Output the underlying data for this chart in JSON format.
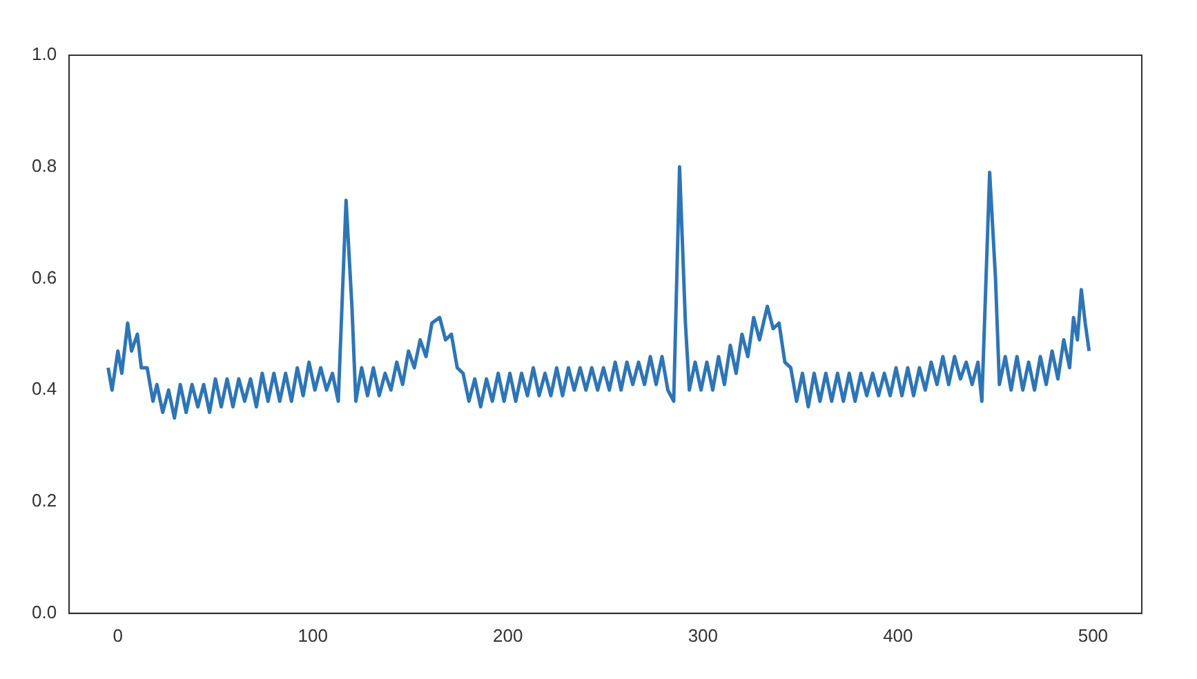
{
  "chart_data": {
    "type": "line",
    "xlim": [
      -25,
      525
    ],
    "ylim": [
      0,
      1
    ],
    "xticks": [
      0,
      100,
      200,
      300,
      400,
      500
    ],
    "yticks": [
      {
        "value": 0,
        "label": "0.0"
      },
      0.2,
      0.4,
      0.6,
      0.8,
      {
        "value": 1,
        "label": "1.0"
      }
    ],
    "grid": false,
    "legend": false,
    "marker": "none",
    "line_style": "solid",
    "series": [
      {
        "color": "#2e75b6",
        "x": [
          -5,
          -3,
          0,
          2,
          5,
          7,
          10,
          12,
          15,
          18,
          20,
          23,
          26,
          29,
          32,
          35,
          38,
          41,
          44,
          47,
          50,
          53,
          56,
          59,
          62,
          65,
          68,
          71,
          74,
          77,
          80,
          83,
          86,
          89,
          92,
          95,
          98,
          101,
          104,
          107,
          110,
          113,
          117,
          120,
          122,
          125,
          128,
          131,
          134,
          137,
          140,
          143,
          146,
          149,
          152,
          155,
          158,
          161,
          165,
          168,
          171,
          174,
          177,
          180,
          183,
          186,
          189,
          192,
          195,
          198,
          201,
          204,
          207,
          210,
          213,
          216,
          219,
          222,
          225,
          228,
          231,
          234,
          237,
          240,
          243,
          246,
          249,
          252,
          255,
          258,
          261,
          264,
          267,
          270,
          273,
          276,
          279,
          282,
          285,
          288,
          291,
          293,
          296,
          299,
          302,
          305,
          308,
          311,
          314,
          317,
          320,
          323,
          326,
          329,
          333,
          336,
          339,
          342,
          345,
          348,
          351,
          354,
          357,
          360,
          363,
          366,
          369,
          372,
          375,
          378,
          381,
          384,
          387,
          390,
          393,
          396,
          399,
          402,
          405,
          408,
          411,
          414,
          417,
          420,
          423,
          426,
          429,
          432,
          435,
          438,
          441,
          443,
          447,
          450,
          452,
          455,
          458,
          461,
          464,
          467,
          470,
          473,
          476,
          479,
          482,
          485,
          488,
          490,
          492,
          494,
          496,
          498
        ],
        "values": [
          0.44,
          0.4,
          0.47,
          0.43,
          0.52,
          0.47,
          0.5,
          0.44,
          0.44,
          0.38,
          0.41,
          0.36,
          0.4,
          0.35,
          0.41,
          0.36,
          0.41,
          0.37,
          0.41,
          0.36,
          0.42,
          0.37,
          0.42,
          0.37,
          0.42,
          0.38,
          0.42,
          0.37,
          0.43,
          0.38,
          0.43,
          0.38,
          0.43,
          0.38,
          0.44,
          0.39,
          0.45,
          0.4,
          0.44,
          0.4,
          0.43,
          0.38,
          0.74,
          0.55,
          0.38,
          0.44,
          0.39,
          0.44,
          0.39,
          0.43,
          0.4,
          0.45,
          0.41,
          0.47,
          0.44,
          0.49,
          0.46,
          0.52,
          0.53,
          0.49,
          0.5,
          0.44,
          0.43,
          0.38,
          0.42,
          0.37,
          0.42,
          0.38,
          0.43,
          0.38,
          0.43,
          0.38,
          0.43,
          0.39,
          0.44,
          0.39,
          0.43,
          0.39,
          0.44,
          0.39,
          0.44,
          0.4,
          0.44,
          0.4,
          0.44,
          0.4,
          0.44,
          0.4,
          0.45,
          0.4,
          0.45,
          0.41,
          0.45,
          0.41,
          0.46,
          0.41,
          0.46,
          0.4,
          0.38,
          0.8,
          0.52,
          0.4,
          0.45,
          0.4,
          0.45,
          0.4,
          0.46,
          0.41,
          0.48,
          0.43,
          0.5,
          0.46,
          0.53,
          0.49,
          0.55,
          0.51,
          0.52,
          0.45,
          0.44,
          0.38,
          0.43,
          0.37,
          0.43,
          0.38,
          0.43,
          0.38,
          0.43,
          0.38,
          0.43,
          0.38,
          0.43,
          0.39,
          0.43,
          0.39,
          0.43,
          0.39,
          0.44,
          0.39,
          0.44,
          0.39,
          0.44,
          0.4,
          0.45,
          0.41,
          0.46,
          0.41,
          0.46,
          0.42,
          0.45,
          0.41,
          0.45,
          0.38,
          0.79,
          0.6,
          0.41,
          0.46,
          0.4,
          0.46,
          0.4,
          0.45,
          0.4,
          0.46,
          0.41,
          0.47,
          0.42,
          0.49,
          0.44,
          0.53,
          0.49,
          0.58,
          0.52,
          0.47
        ]
      }
    ]
  }
}
